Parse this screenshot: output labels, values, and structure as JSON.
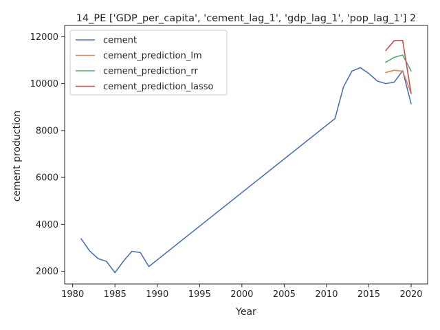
{
  "chart_data": {
    "type": "line",
    "title": "14_PE ['GDP_per_capita', 'cement_lag_1', 'gdp_lag_1', 'pop_lag_1'] 2",
    "xlabel": "Year",
    "ylabel": "cement production",
    "xlim": [
      1979.05,
      2021.95
    ],
    "ylim": [
      1460,
      12480
    ],
    "xticks": [
      1980,
      1985,
      1990,
      1995,
      2000,
      2005,
      2010,
      2015,
      2020
    ],
    "yticks": [
      2000,
      4000,
      6000,
      8000,
      10000,
      12000
    ],
    "grid": false,
    "legend_position": "top-left",
    "series": [
      {
        "name": "cement",
        "color": "#4c72b0",
        "x": [
          1981,
          1982,
          1983,
          1984,
          1985,
          1986,
          1987,
          1988,
          1989,
          2011,
          2012,
          2013,
          2014,
          2015,
          2016,
          2017,
          2018,
          2019,
          2020
        ],
        "y": [
          3390,
          2870,
          2540,
          2420,
          1940,
          2430,
          2850,
          2800,
          2200,
          8510,
          9850,
          10530,
          10680,
          10430,
          10110,
          10000,
          10060,
          10550,
          9140
        ]
      },
      {
        "name": "cement_prediction_lm",
        "color": "#dd8452",
        "x": [
          2017,
          2018,
          2019,
          2020
        ],
        "y": [
          10470,
          10570,
          10530,
          9600
        ]
      },
      {
        "name": "cement_prediction_rr",
        "color": "#55a868",
        "x": [
          2017,
          2018,
          2019,
          2020
        ],
        "y": [
          10910,
          11120,
          11220,
          10540
        ]
      },
      {
        "name": "cement_prediction_lasso",
        "color": "#c44e52",
        "x": [
          2017,
          2018,
          2019,
          2020
        ],
        "y": [
          11410,
          11830,
          11840,
          9580
        ]
      }
    ]
  }
}
